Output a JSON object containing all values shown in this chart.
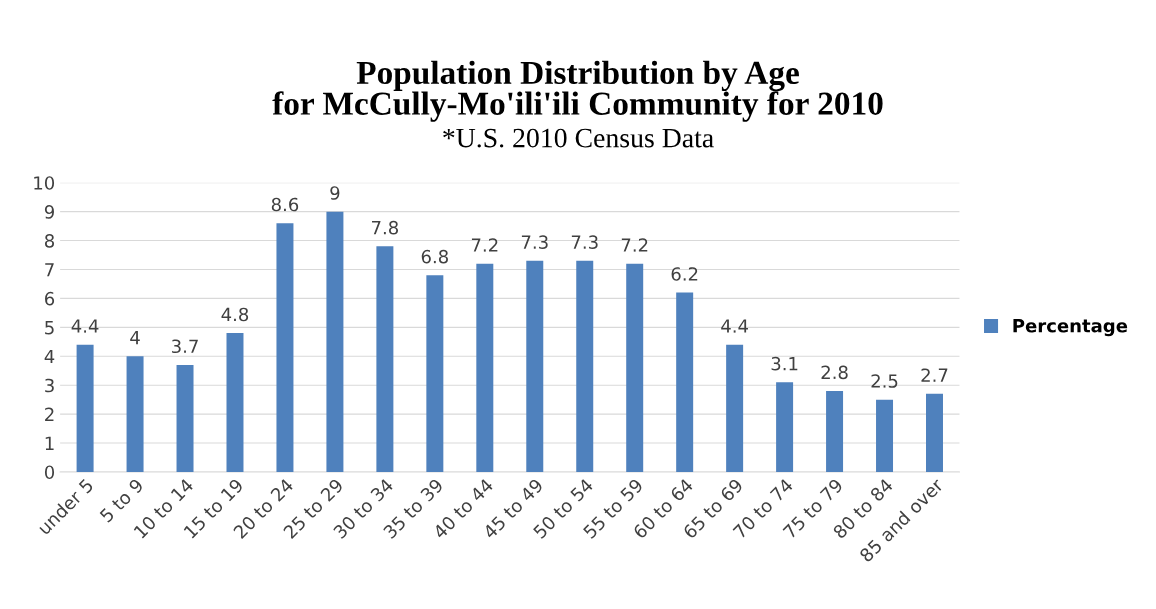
{
  "chart_data": {
    "type": "bar",
    "title": "Population Distribution by Age\nfor McCully-Mo'ili'ili Community for 2010",
    "subtitle": "*U.S. 2010 Census Data",
    "categories": [
      "under 5",
      "5 to 9",
      "10 to 14",
      "15 to 19",
      "20 to 24",
      "25 to 29",
      "30 to 34",
      "35 to 39",
      "40 to 44",
      "45 to 49",
      "50 to 54",
      "55 to 59",
      "60 to 64",
      "65 to 69",
      "70 to 74",
      "75 to 79",
      "80 to 84",
      "85 and over"
    ],
    "series": [
      {
        "name": "Percentage",
        "color": "#4f81bd",
        "values": [
          4.4,
          4,
          3.7,
          4.8,
          8.6,
          9,
          7.8,
          6.8,
          7.2,
          7.3,
          7.3,
          7.2,
          6.2,
          4.4,
          3.1,
          2.8,
          2.5,
          2.7
        ]
      }
    ],
    "ylim": [
      0,
      10
    ],
    "yticks": [
      0,
      1,
      2,
      3,
      4,
      5,
      6,
      7,
      8,
      9,
      10
    ],
    "grid": "y",
    "data_labels": true,
    "legend": "right"
  }
}
